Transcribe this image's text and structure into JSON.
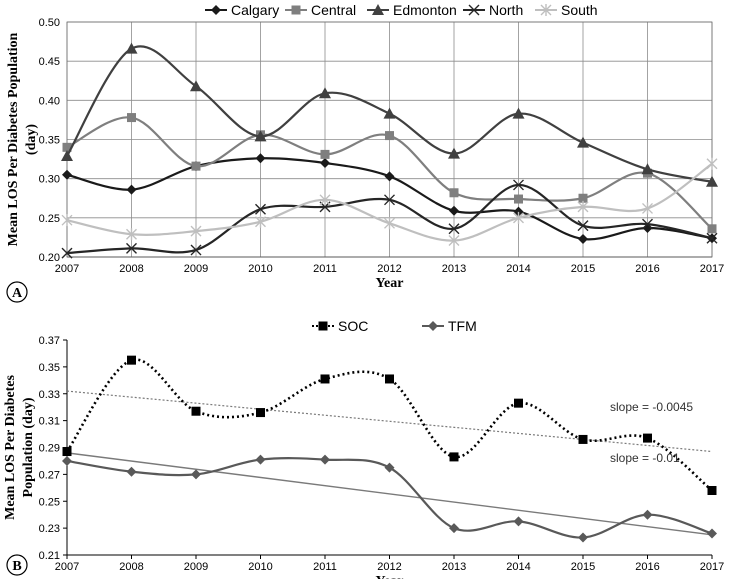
{
  "chart_data": [
    {
      "panel": "A",
      "type": "line",
      "xlabel": "Year",
      "ylabel": "Mean LOS Per Diabetes Population (day)",
      "ylabel_lines": [
        "Mean LOS Per Diabetes Population",
        "(day)"
      ],
      "x": [
        2007,
        2008,
        2009,
        2010,
        2011,
        2012,
        2013,
        2014,
        2015,
        2016,
        2017
      ],
      "x_labels": [
        "2007",
        "2008",
        "2009",
        "2010",
        "2011",
        "2012",
        "2013",
        "2014",
        "2015",
        "2016",
        "2017"
      ],
      "ylim": [
        0.2,
        0.5
      ],
      "yticks": [
        0.2,
        0.25,
        0.3,
        0.35,
        0.4,
        0.45,
        0.5
      ],
      "ytick_labels": [
        "0.20",
        "0.25",
        "0.30",
        "0.35",
        "0.40",
        "0.45",
        "0.50"
      ],
      "grid": true,
      "legend": "top",
      "series": [
        {
          "name": "Calgary",
          "marker": "diamond",
          "color": "#1a1a1a",
          "values": [
            0.305,
            0.286,
            0.316,
            0.326,
            0.32,
            0.303,
            0.259,
            0.258,
            0.223,
            0.237,
            0.224
          ]
        },
        {
          "name": "Central",
          "marker": "square",
          "color": "#7f7f7f",
          "values": [
            0.34,
            0.378,
            0.316,
            0.356,
            0.331,
            0.355,
            0.282,
            0.274,
            0.275,
            0.307,
            0.236
          ]
        },
        {
          "name": "Edmonton",
          "marker": "triangle",
          "color": "#404040",
          "values": [
            0.329,
            0.466,
            0.418,
            0.354,
            0.409,
            0.383,
            0.332,
            0.383,
            0.346,
            0.312,
            0.296
          ]
        },
        {
          "name": "North",
          "marker": "x",
          "color": "#262626",
          "values": [
            0.205,
            0.211,
            0.209,
            0.261,
            0.264,
            0.273,
            0.236,
            0.292,
            0.24,
            0.242,
            0.224
          ]
        },
        {
          "name": "South",
          "marker": "asterisk",
          "color": "#bfbfbf",
          "values": [
            0.247,
            0.229,
            0.233,
            0.245,
            0.273,
            0.243,
            0.221,
            0.25,
            0.264,
            0.262,
            0.319
          ]
        }
      ]
    },
    {
      "panel": "B",
      "type": "line",
      "xlabel": "Year",
      "ylabel": "Mean LOS Per Diabetes Population (day)",
      "ylabel_lines": [
        "Mean LOS Per Diabetes",
        "Population (day)"
      ],
      "x": [
        2007,
        2008,
        2009,
        2010,
        2011,
        2012,
        2013,
        2014,
        2015,
        2016,
        2017
      ],
      "x_labels": [
        "2007",
        "2008",
        "2009",
        "2010",
        "2011",
        "2012",
        "2013",
        "2014",
        "2015",
        "2016",
        "2017"
      ],
      "ylim": [
        0.21,
        0.37
      ],
      "yticks": [
        0.21,
        0.23,
        0.25,
        0.27,
        0.29,
        0.31,
        0.33,
        0.35,
        0.37
      ],
      "ytick_labels": [
        "0.21",
        "0.23",
        "0.25",
        "0.27",
        "0.29",
        "0.31",
        "0.33",
        "0.35",
        "0.37"
      ],
      "grid": false,
      "legend": "top",
      "series": [
        {
          "name": "SOC",
          "marker": "square",
          "color": "#000000",
          "style": "dotted",
          "values": [
            0.287,
            0.355,
            0.317,
            0.316,
            0.341,
            0.341,
            0.283,
            0.323,
            0.296,
            0.297,
            0.258
          ]
        },
        {
          "name": "TFM",
          "marker": "diamond",
          "color": "#595959",
          "style": "solid",
          "values": [
            0.28,
            0.272,
            0.27,
            0.281,
            0.281,
            0.275,
            0.23,
            0.235,
            0.223,
            0.24,
            0.226
          ]
        }
      ],
      "trendlines": [
        {
          "of": "SOC",
          "style": "dotted",
          "start": 0.332,
          "end": 0.287,
          "label": "slope = -0.0045"
        },
        {
          "of": "TFM",
          "style": "solid",
          "start": 0.286,
          "end": 0.225,
          "label": "slope = -0.01"
        }
      ]
    }
  ]
}
